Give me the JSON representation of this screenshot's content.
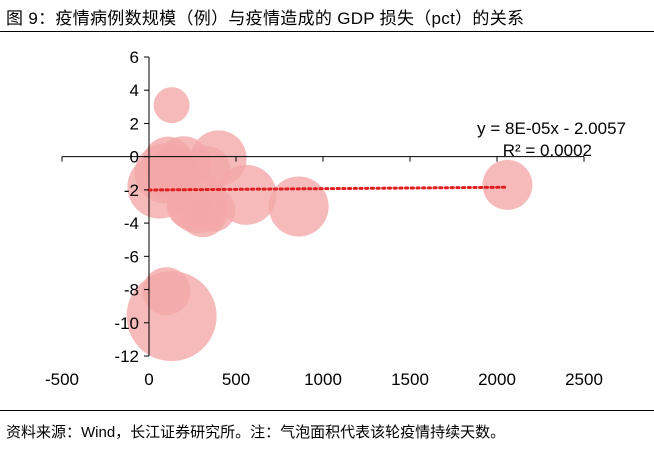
{
  "title": "图 9：疫情病例数规模（例）与疫情造成的 GDP 损失（pct）的关系",
  "source": "资料来源：Wind，长江证券研究所。注：气泡面积代表该轮疫情持续天数。",
  "chart_data": {
    "type": "bubble",
    "title": "图 9：疫情病例数规模（例）与疫情造成的 GDP 损失（pct）的关系",
    "xlabel": "",
    "ylabel": "",
    "xlim": [
      -500,
      2500
    ],
    "ylim": [
      -12,
      6
    ],
    "xticks": [
      -500,
      0,
      500,
      1000,
      1500,
      2000,
      2500
    ],
    "yticks": [
      -12,
      -10,
      -8,
      -6,
      -4,
      -2,
      0,
      2,
      4,
      6
    ],
    "grid": false,
    "legend": "none",
    "bubble_color": "#f4a6a8",
    "trendline_color": "#e02020",
    "trendline": {
      "equation": "y = 8E-05x - 2.0057",
      "r_squared": "R² = 0.0002",
      "slope": 8e-05,
      "intercept": -2.0057,
      "x_range": [
        0,
        2060
      ]
    },
    "points": [
      {
        "x": 130,
        "y": 3.1,
        "size": 18
      },
      {
        "x": 130,
        "y": -9.6,
        "size": 45
      },
      {
        "x": 100,
        "y": -8.1,
        "size": 24
      },
      {
        "x": 60,
        "y": -1.8,
        "size": 32
      },
      {
        "x": 90,
        "y": -1.0,
        "size": 30
      },
      {
        "x": 110,
        "y": -0.3,
        "size": 25
      },
      {
        "x": 150,
        "y": -0.6,
        "size": 22
      },
      {
        "x": 170,
        "y": -1.5,
        "size": 18
      },
      {
        "x": 200,
        "y": -0.4,
        "size": 27
      },
      {
        "x": 230,
        "y": -3.0,
        "size": 22
      },
      {
        "x": 280,
        "y": -2.8,
        "size": 30
      },
      {
        "x": 310,
        "y": -3.4,
        "size": 24
      },
      {
        "x": 330,
        "y": -0.8,
        "size": 24
      },
      {
        "x": 370,
        "y": -3.2,
        "size": 22
      },
      {
        "x": 400,
        "y": -0.1,
        "size": 28
      },
      {
        "x": 560,
        "y": -2.3,
        "size": 30
      },
      {
        "x": 860,
        "y": -3.0,
        "size": 30
      },
      {
        "x": 2060,
        "y": -1.7,
        "size": 25
      },
      {
        "x": 40,
        "y": -0.5,
        "size": 10
      },
      {
        "x": 60,
        "y": -1.2,
        "size": 11
      },
      {
        "x": 80,
        "y": -1.6,
        "size": 12
      },
      {
        "x": 100,
        "y": -0.8,
        "size": 11
      },
      {
        "x": 120,
        "y": -1.1,
        "size": 10
      },
      {
        "x": 70,
        "y": -0.3,
        "size": 9
      },
      {
        "x": 140,
        "y": -0.2,
        "size": 10
      },
      {
        "x": 50,
        "y": -1.9,
        "size": 9
      },
      {
        "x": 90,
        "y": -2.1,
        "size": 9
      },
      {
        "x": 160,
        "y": -0.9,
        "size": 10
      },
      {
        "x": 110,
        "y": -1.7,
        "size": 9
      },
      {
        "x": 180,
        "y": -0.5,
        "size": 9
      }
    ]
  }
}
